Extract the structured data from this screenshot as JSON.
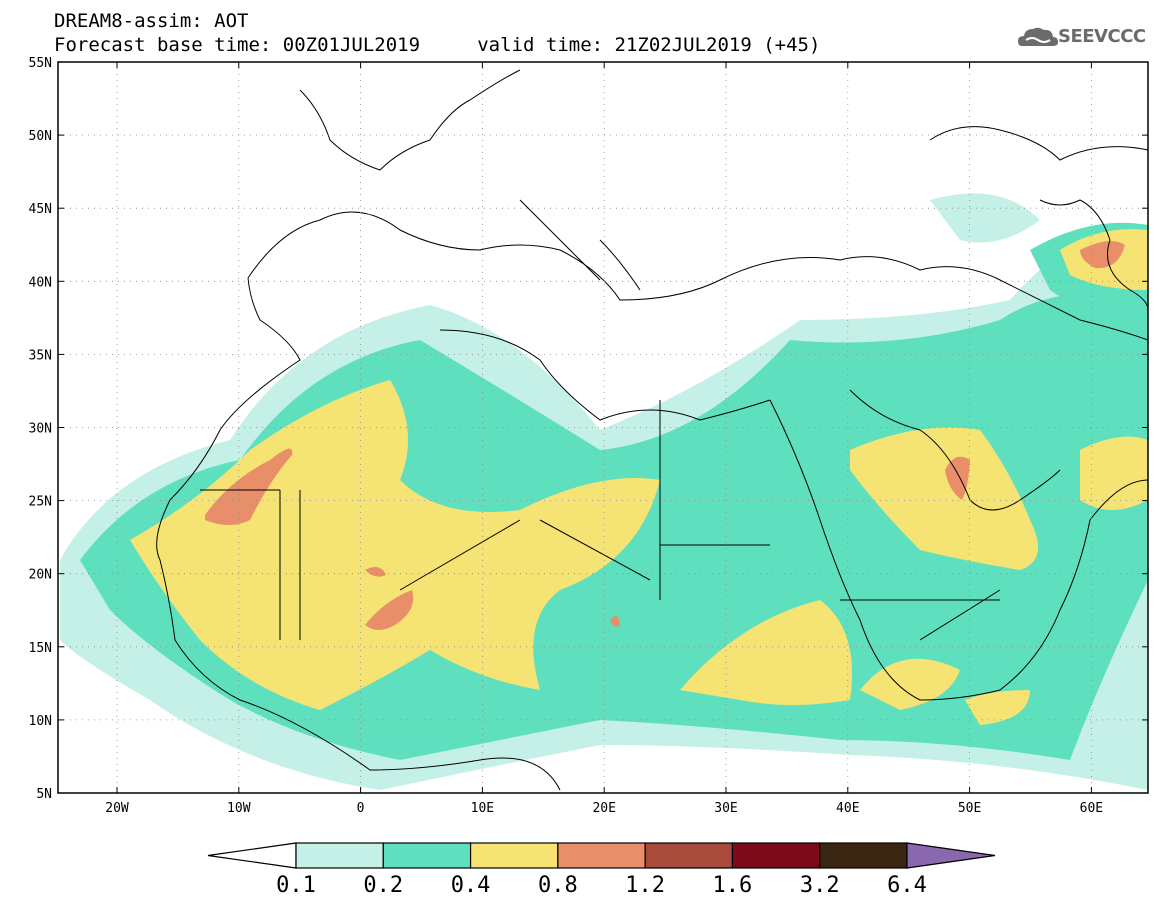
{
  "title": {
    "line1": "DREAM8-assim: AOT",
    "line2": "Forecast base time: 00Z01JUL2019     valid time: 21Z02JUL2019 (+45)"
  },
  "logo": {
    "text": "SEEVCCC",
    "icon": "cloud-icon"
  },
  "map": {
    "lat_labels": [
      "55N",
      "50N",
      "45N",
      "40N",
      "35N",
      "30N",
      "25N",
      "20N",
      "15N",
      "10N",
      "5N"
    ],
    "lon_labels": [
      "20W",
      "10W",
      "0",
      "10E",
      "20E",
      "30E",
      "40E",
      "50E",
      "60E"
    ]
  },
  "colorbar": {
    "levels": [
      "0.1",
      "0.2",
      "0.4",
      "0.8",
      "1.2",
      "1.6",
      "3.2",
      "6.4"
    ],
    "colors": [
      "#c4f0e8",
      "#5ee0bf",
      "#f5e473",
      "#e88e68",
      "#a84a3c",
      "#7c0a1a",
      "#3a2412",
      "#8a68b0"
    ],
    "under_color": "#ffffff"
  }
}
